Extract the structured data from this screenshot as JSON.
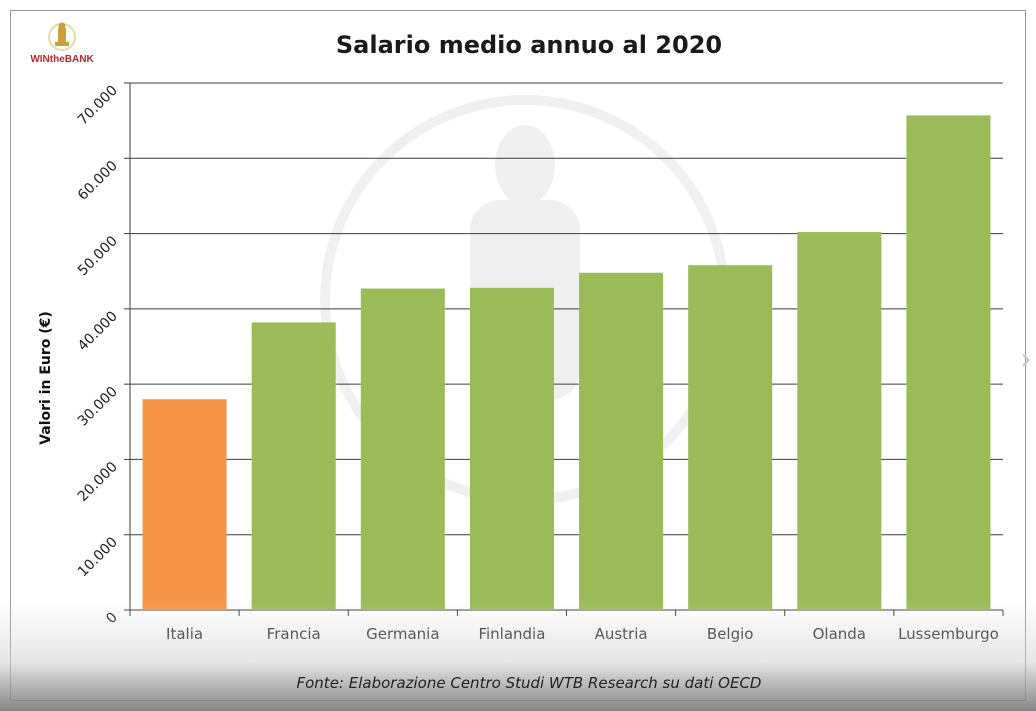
{
  "brand": {
    "logo_text_1": "WIN",
    "logo_text_2": "the",
    "logo_text_3": "BANK",
    "logo_color": "#c0272d",
    "logo_icon": "trophy-icon"
  },
  "source_note": "Fonte: Elaborazione Centro Studi WTB Research su dati OECD",
  "nav": {
    "next_icon": "chevron-right-icon"
  },
  "chart_data": {
    "type": "bar",
    "title": "Salario medio annuo al 2020",
    "xlabel": "",
    "ylabel": "Valori in Euro (€)",
    "categories": [
      "Italia",
      "Francia",
      "Germania",
      "Finlandia",
      "Austria",
      "Belgio",
      "Olanda",
      "Lussemburgo"
    ],
    "values": [
      28000,
      38200,
      42700,
      42800,
      44800,
      45800,
      50200,
      65700
    ],
    "bar_colors": [
      "#f79646",
      "#9bbb59",
      "#9bbb59",
      "#9bbb59",
      "#9bbb59",
      "#9bbb59",
      "#9bbb59",
      "#9bbb59"
    ],
    "ylim": [
      0,
      70000
    ],
    "yticks": [
      0,
      10000,
      20000,
      30000,
      40000,
      50000,
      60000,
      70000
    ],
    "ytick_labels": [
      "0",
      "10.000",
      "20.000",
      "30.000",
      "40.000",
      "50.000",
      "60.000",
      "70.000"
    ],
    "grid": true,
    "legend": "none"
  }
}
